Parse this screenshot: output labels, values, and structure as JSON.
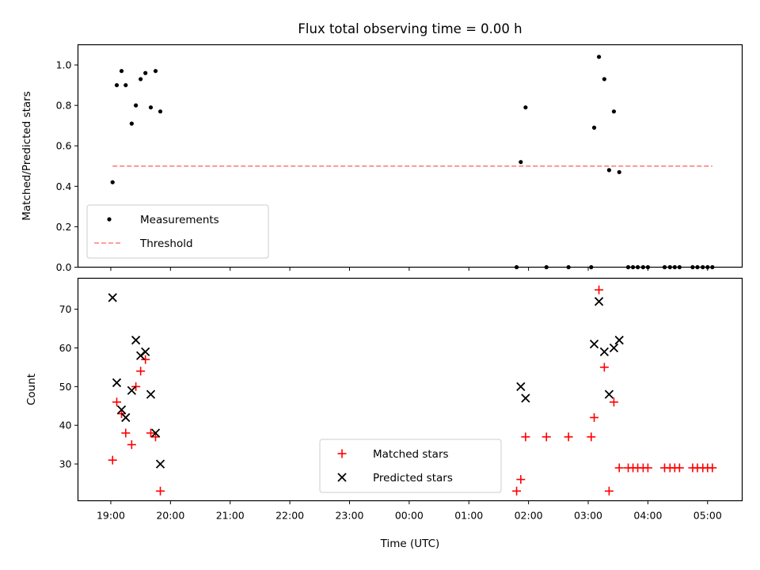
{
  "title": "Flux total observing time = 0.00 h",
  "chart_data": [
    {
      "type": "scatter",
      "ylabel": "Matched/Predicted stars",
      "xlabel": "",
      "ylim": [
        0,
        1.1
      ],
      "yticks": [
        0.0,
        0.2,
        0.4,
        0.6,
        0.8,
        1.0
      ],
      "ytick_labels": [
        "0.0",
        "0.2",
        "0.4",
        "0.6",
        "0.8",
        "1.0"
      ],
      "xlim_hours": [
        18.45,
        29.58
      ],
      "legend_position": "lower-left",
      "series": [
        {
          "name": "Measurements",
          "color": "#000000",
          "marker": "dot",
          "x_hours": [
            19.03,
            19.1,
            19.18,
            19.25,
            19.35,
            19.42,
            19.5,
            19.58,
            19.67,
            19.75,
            19.83,
            25.8,
            25.87,
            25.95,
            26.3,
            26.67,
            27.05,
            27.1,
            27.18,
            27.27,
            27.35,
            27.43,
            27.52,
            27.67,
            27.75,
            27.83,
            27.92,
            28.0,
            28.28,
            28.37,
            28.45,
            28.53,
            28.75,
            28.83,
            28.92,
            29.0,
            29.08
          ],
          "y": [
            0.42,
            0.9,
            0.97,
            0.9,
            0.71,
            0.8,
            0.93,
            0.96,
            0.79,
            0.97,
            0.77,
            0.0,
            0.52,
            0.79,
            0.0,
            0.0,
            0.0,
            0.69,
            1.04,
            0.93,
            0.48,
            0.77,
            0.47,
            0.0,
            0.0,
            0.0,
            0.0,
            0.0,
            0.0,
            0.0,
            0.0,
            0.0,
            0.0,
            0.0,
            0.0,
            0.0,
            0.0
          ]
        },
        {
          "name": "Threshold",
          "color": "#ff7f7f",
          "style": "dashed",
          "x_hours": [
            19.03,
            29.08
          ],
          "y": [
            0.5,
            0.5
          ]
        }
      ]
    },
    {
      "type": "scatter",
      "ylabel": "Count",
      "xlabel": "Time (UTC)",
      "ylim": [
        20.5,
        78
      ],
      "yticks": [
        30,
        40,
        50,
        60,
        70
      ],
      "ytick_labels": [
        "30",
        "40",
        "50",
        "60",
        "70"
      ],
      "xlim_hours": [
        18.45,
        29.58
      ],
      "xticks_hours": [
        19,
        20,
        21,
        22,
        23,
        24,
        25,
        26,
        27,
        28,
        29
      ],
      "xtick_labels": [
        "19:00",
        "20:00",
        "21:00",
        "22:00",
        "23:00",
        "00:00",
        "01:00",
        "02:00",
        "03:00",
        "04:00",
        "05:00"
      ],
      "legend_position": "lower-center",
      "series": [
        {
          "name": "Matched stars",
          "color": "#ff0000",
          "marker": "plus",
          "x_hours": [
            19.03,
            19.1,
            19.18,
            19.25,
            19.35,
            19.42,
            19.5,
            19.58,
            19.67,
            19.75,
            19.83,
            25.8,
            25.87,
            25.95,
            26.3,
            26.67,
            27.05,
            27.1,
            27.18,
            27.27,
            27.35,
            27.43,
            27.52,
            27.67,
            27.75,
            27.83,
            27.92,
            28.0,
            28.28,
            28.37,
            28.45,
            28.53,
            28.75,
            28.83,
            28.92,
            29.0,
            29.08
          ],
          "y": [
            31,
            46,
            43,
            38,
            35,
            50,
            54,
            57,
            38,
            37,
            23,
            23,
            26,
            37,
            37,
            37,
            37,
            42,
            75,
            55,
            23,
            46,
            29,
            29,
            29,
            29,
            29,
            29,
            29,
            29,
            29,
            29,
            29,
            29,
            29,
            29,
            29
          ]
        },
        {
          "name": "Predicted stars",
          "color": "#000000",
          "marker": "x",
          "x_hours": [
            19.03,
            19.1,
            19.18,
            19.25,
            19.35,
            19.42,
            19.5,
            19.58,
            19.67,
            19.75,
            19.83,
            25.87,
            25.95,
            27.1,
            27.18,
            27.27,
            27.35,
            27.43,
            27.52
          ],
          "y": [
            73,
            51,
            44,
            42,
            49,
            62,
            58,
            59,
            48,
            38,
            30,
            50,
            47,
            61,
            72,
            59,
            48,
            60,
            62
          ]
        }
      ]
    }
  ]
}
